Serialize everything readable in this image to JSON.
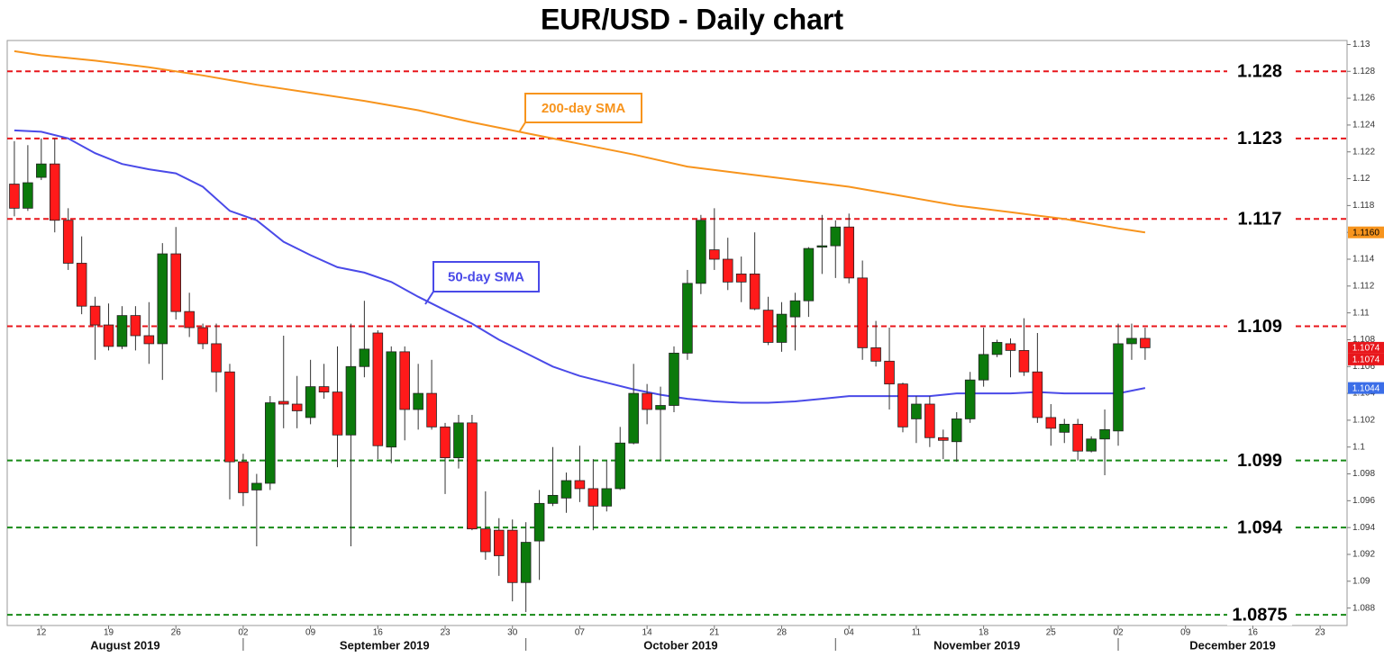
{
  "chart_data": {
    "type": "candlestick",
    "title": "EUR/USD - Daily chart",
    "up_color": "#0b7a0b",
    "down_color": "#ff1a1a",
    "x": [
      "2019-08-08",
      "2019-08-09",
      "2019-08-12",
      "2019-08-13",
      "2019-08-14",
      "2019-08-15",
      "2019-08-16",
      "2019-08-19",
      "2019-08-20",
      "2019-08-21",
      "2019-08-22",
      "2019-08-23",
      "2019-08-26",
      "2019-08-27",
      "2019-08-28",
      "2019-08-29",
      "2019-08-30",
      "2019-09-02",
      "2019-09-03",
      "2019-09-04",
      "2019-09-05",
      "2019-09-06",
      "2019-09-09",
      "2019-09-10",
      "2019-09-11",
      "2019-09-12",
      "2019-09-13",
      "2019-09-16",
      "2019-09-17",
      "2019-09-18",
      "2019-09-19",
      "2019-09-20",
      "2019-09-23",
      "2019-09-24",
      "2019-09-25",
      "2019-09-26",
      "2019-09-27",
      "2019-09-30",
      "2019-10-01",
      "2019-10-02",
      "2019-10-03",
      "2019-10-04",
      "2019-10-07",
      "2019-10-08",
      "2019-10-09",
      "2019-10-10",
      "2019-10-11",
      "2019-10-14",
      "2019-10-15",
      "2019-10-16",
      "2019-10-17",
      "2019-10-18",
      "2019-10-21",
      "2019-10-22",
      "2019-10-23",
      "2019-10-24",
      "2019-10-25",
      "2019-10-28",
      "2019-10-29",
      "2019-10-30",
      "2019-10-31",
      "2019-11-01",
      "2019-11-04",
      "2019-11-05",
      "2019-11-06",
      "2019-11-07",
      "2019-11-08",
      "2019-11-11",
      "2019-11-12",
      "2019-11-13",
      "2019-11-14",
      "2019-11-15",
      "2019-11-18",
      "2019-11-19",
      "2019-11-20",
      "2019-11-21",
      "2019-11-22",
      "2019-11-25",
      "2019-11-26",
      "2019-11-27",
      "2019-11-28",
      "2019-11-29",
      "2019-12-02",
      "2019-12-03",
      "2019-12-04"
    ],
    "open": [
      1.1196,
      1.1178,
      1.1201,
      1.1211,
      1.1169,
      1.1137,
      1.1105,
      1.1091,
      1.1075,
      1.1098,
      1.1083,
      1.1077,
      1.1144,
      1.1101,
      1.1089,
      1.1077,
      1.1056,
      1.0989,
      1.0968,
      1.0973,
      1.1034,
      1.1032,
      1.1022,
      1.1045,
      1.1041,
      1.1009,
      1.106,
      1.1085,
      1.1,
      1.1071,
      1.1028,
      1.104,
      1.1015,
      1.0992,
      1.1018,
      1.0939,
      1.0938,
      1.0938,
      1.0899,
      1.093,
      1.0958,
      1.0962,
      1.0975,
      1.0969,
      1.0956,
      1.0969,
      1.1003,
      1.104,
      1.1028,
      1.1031,
      1.107,
      1.1122,
      1.1147,
      1.114,
      1.1129,
      1.1129,
      1.1102,
      1.1078,
      1.1097,
      1.1109,
      1.1149,
      1.115,
      1.1164,
      1.1126,
      1.1074,
      1.1064,
      1.1047,
      1.1021,
      1.1032,
      1.1007,
      1.1004,
      1.1021,
      1.105,
      1.1069,
      1.1077,
      1.1072,
      1.1056,
      1.1022,
      1.1011,
      1.1017,
      1.0997,
      1.1006,
      1.1012,
      1.1077,
      1.1081
    ],
    "high": [
      1.1228,
      1.1225,
      1.123,
      1.123,
      1.1178,
      1.1157,
      1.1112,
      1.1107,
      1.1105,
      1.1105,
      1.1108,
      1.1152,
      1.1164,
      1.1115,
      1.1092,
      1.1092,
      1.1062,
      1.0995,
      1.098,
      1.1038,
      1.1083,
      1.1053,
      1.1065,
      1.1062,
      1.1075,
      1.1092,
      1.1109,
      1.1087,
      1.1075,
      1.1075,
      1.1062,
      1.1065,
      1.1018,
      1.1024,
      1.1024,
      1.0967,
      1.0947,
      1.0946,
      1.0944,
      1.0968,
      1.1,
      1.0981,
      1.1001,
      1.0991,
      1.099,
      1.1015,
      1.1062,
      1.1047,
      1.1045,
      1.1075,
      1.1132,
      1.1173,
      1.1178,
      1.1156,
      1.1142,
      1.116,
      1.1112,
      1.1108,
      1.1115,
      1.1149,
      1.1173,
      1.1169,
      1.1174,
      1.1139,
      1.1094,
      1.1089,
      1.1048,
      1.1038,
      1.1038,
      1.1013,
      1.1026,
      1.1056,
      1.1089,
      1.108,
      1.1081,
      1.1096,
      1.1085,
      1.1032,
      1.1021,
      1.1021,
      1.1008,
      1.1028,
      1.1092,
      1.1092,
      1.1089
    ],
    "low": [
      1.1172,
      1.1176,
      1.1199,
      1.116,
      1.1132,
      1.1099,
      1.1065,
      1.1072,
      1.1073,
      1.1072,
      1.1062,
      1.105,
      1.1095,
      1.1082,
      1.1073,
      1.1041,
      1.0961,
      1.0956,
      1.0926,
      1.0968,
      1.1014,
      1.1014,
      1.1017,
      1.1036,
      1.0985,
      1.0926,
      1.1052,
      1.0991,
      1.0988,
      1.1005,
      1.1013,
      1.1013,
      1.0965,
      1.0984,
      1.0938,
      1.0916,
      1.0904,
      1.0885,
      1.0877,
      1.0901,
      1.0956,
      1.0951,
      1.0959,
      1.0938,
      1.0952,
      1.0968,
      1.1002,
      1.1017,
      1.099,
      1.1026,
      1.1065,
      1.1114,
      1.1132,
      1.1117,
      1.1108,
      1.1102,
      1.1076,
      1.1071,
      1.1072,
      1.1097,
      1.1129,
      1.1126,
      1.1122,
      1.1065,
      1.106,
      1.1028,
      1.1011,
      1.1003,
      1.1,
      1.0991,
      1.0989,
      1.1018,
      1.1045,
      1.1067,
      1.1052,
      1.1053,
      1.1018,
      1.1001,
      1.1003,
      1.099,
      1.0996,
      1.0979,
      1.1001,
      1.1065,
      1.1065
    ],
    "close": [
      1.1178,
      1.1197,
      1.1211,
      1.1169,
      1.1137,
      1.1105,
      1.1091,
      1.1075,
      1.1098,
      1.1083,
      1.1077,
      1.1144,
      1.1101,
      1.1089,
      1.1077,
      1.1056,
      1.0989,
      1.0966,
      1.0973,
      1.1033,
      1.1032,
      1.1027,
      1.1045,
      1.1041,
      1.1009,
      1.106,
      1.1073,
      1.1001,
      1.1071,
      1.1028,
      1.104,
      1.1015,
      1.0992,
      1.1018,
      1.0939,
      1.0922,
      1.0919,
      1.0899,
      1.0929,
      1.0958,
      1.0964,
      1.0975,
      1.0969,
      1.0956,
      1.0969,
      1.1003,
      1.104,
      1.1028,
      1.1031,
      1.107,
      1.1122,
      1.1169,
      1.114,
      1.1123,
      1.1123,
      1.1103,
      1.1078,
      1.1099,
      1.1109,
      1.1148,
      1.115,
      1.1164,
      1.1126,
      1.1074,
      1.1064,
      1.1047,
      1.1015,
      1.1032,
      1.1007,
      1.1005,
      1.1021,
      1.105,
      1.1069,
      1.1078,
      1.1072,
      1.1056,
      1.1022,
      1.1014,
      1.1017,
      1.0997,
      1.1006,
      1.1013,
      1.1077,
      1.1081,
      1.1074
    ],
    "sma": [
      {
        "name": "200-day SMA",
        "color": "#f7941d",
        "x": [
          "2019-08-08",
          "2019-08-12",
          "2019-08-16",
          "2019-08-22",
          "2019-08-28",
          "2019-09-03",
          "2019-09-09",
          "2019-09-13",
          "2019-09-19",
          "2019-09-25",
          "2019-10-01",
          "2019-10-07",
          "2019-10-11",
          "2019-10-17",
          "2019-10-23",
          "2019-10-29",
          "2019-11-04",
          "2019-11-08",
          "2019-11-14",
          "2019-11-20",
          "2019-11-26",
          "2019-12-02",
          "2019-12-04"
        ],
        "values": [
          1.1295,
          1.1292,
          1.1288,
          1.1283,
          1.1277,
          1.127,
          1.1264,
          1.1258,
          1.1251,
          1.1242,
          1.1234,
          1.1226,
          1.1218,
          1.1209,
          1.1204,
          1.1199,
          1.1194,
          1.1187,
          1.118,
          1.1175,
          1.117,
          1.1163,
          1.116
        ]
      },
      {
        "name": "50-day SMA",
        "color": "#4a4ae8",
        "x": [
          "2019-08-08",
          "2019-08-12",
          "2019-08-14",
          "2019-08-16",
          "2019-08-20",
          "2019-08-22",
          "2019-08-26",
          "2019-08-28",
          "2019-08-30",
          "2019-09-03",
          "2019-09-05",
          "2019-09-09",
          "2019-09-11",
          "2019-09-13",
          "2019-09-17",
          "2019-09-19",
          "2019-09-23",
          "2019-09-25",
          "2019-09-27",
          "2019-10-01",
          "2019-10-03",
          "2019-10-07",
          "2019-10-09",
          "2019-10-11",
          "2019-10-15",
          "2019-10-17",
          "2019-10-21",
          "2019-10-23",
          "2019-10-25",
          "2019-10-29",
          "2019-10-31",
          "2019-11-04",
          "2019-11-06",
          "2019-11-08",
          "2019-11-12",
          "2019-11-14",
          "2019-11-18",
          "2019-11-20",
          "2019-11-22",
          "2019-11-26",
          "2019-11-28",
          "2019-12-02",
          "2019-12-04"
        ],
        "values": [
          1.1236,
          1.1235,
          1.123,
          1.1219,
          1.1211,
          1.1207,
          1.1204,
          1.1194,
          1.1176,
          1.1169,
          1.1153,
          1.1143,
          1.1134,
          1.113,
          1.1123,
          1.1112,
          1.1102,
          1.1092,
          1.108,
          1.107,
          1.106,
          1.1053,
          1.1048,
          1.1043,
          1.1039,
          1.1036,
          1.1034,
          1.1033,
          1.1033,
          1.1034,
          1.1036,
          1.1038,
          1.1038,
          1.1038,
          1.1038,
          1.104,
          1.104,
          1.104,
          1.1041,
          1.104,
          1.104,
          1.104,
          1.1044
        ]
      }
    ],
    "levels": [
      {
        "value": 1.128,
        "color": "#e8161b"
      },
      {
        "value": 1.123,
        "color": "#e8161b"
      },
      {
        "value": 1.117,
        "color": "#e8161b"
      },
      {
        "value": 1.109,
        "color": "#e8161b"
      },
      {
        "value": 1.099,
        "color": "#178a17"
      },
      {
        "value": 1.094,
        "color": "#178a17"
      },
      {
        "value": 1.0875,
        "color": "#178a17"
      }
    ],
    "price_tags": [
      {
        "value": 1.116,
        "label": "1.1160",
        "color": "#f7941d"
      },
      {
        "value": 1.1074,
        "label": "1.1074",
        "color": "#e8161b"
      },
      {
        "value": 1.1074,
        "label": "1.1074",
        "color": "#e8161b"
      },
      {
        "value": 1.1044,
        "label": "1.1044",
        "color": "#3b6ee8"
      }
    ],
    "ylim": [
      1.0867,
      1.1303
    ],
    "yticks": [
      1.088,
      1.09,
      1.092,
      1.094,
      1.096,
      1.098,
      1.1,
      1.102,
      1.104,
      1.106,
      1.108,
      1.11,
      1.112,
      1.114,
      1.116,
      1.118,
      1.12,
      1.122,
      1.124,
      1.126,
      1.128,
      1.13
    ],
    "xlim": [
      "2019-08-07",
      "2019-12-25"
    ],
    "xticks": [
      {
        "value": "2019-08-12",
        "label": "12"
      },
      {
        "value": "2019-08-19",
        "label": "19"
      },
      {
        "value": "2019-08-26",
        "label": "26"
      },
      {
        "value": "2019-09-02",
        "label": "02"
      },
      {
        "value": "2019-09-09",
        "label": "09"
      },
      {
        "value": "2019-09-16",
        "label": "16"
      },
      {
        "value": "2019-09-23",
        "label": "23"
      },
      {
        "value": "2019-09-30",
        "label": "30"
      },
      {
        "value": "2019-10-07",
        "label": "07"
      },
      {
        "value": "2019-10-14",
        "label": "14"
      },
      {
        "value": "2019-10-21",
        "label": "21"
      },
      {
        "value": "2019-10-28",
        "label": "28"
      },
      {
        "value": "2019-11-04",
        "label": "04"
      },
      {
        "value": "2019-11-11",
        "label": "11"
      },
      {
        "value": "2019-11-18",
        "label": "18"
      },
      {
        "value": "2019-11-25",
        "label": "25"
      },
      {
        "value": "2019-12-02",
        "label": "02"
      },
      {
        "value": "2019-12-09",
        "label": "09"
      },
      {
        "value": "2019-12-16",
        "label": "16"
      },
      {
        "value": "2019-12-23",
        "label": "23"
      }
    ],
    "months": [
      "August 2019",
      "September 2019",
      "October 2019",
      "November 2019",
      "December 2019"
    ],
    "grid": false
  }
}
